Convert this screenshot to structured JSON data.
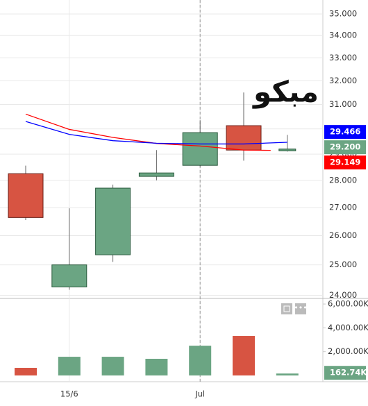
{
  "chart_data": [
    {
      "type": "candlestick",
      "categories": [
        null,
        "15/6",
        null,
        null,
        "Jul",
        null,
        null
      ],
      "open": [
        28.25,
        24.27,
        25.34,
        28.15,
        28.57,
        30.13,
        29.13
      ],
      "high": [
        28.56,
        26.97,
        27.84,
        29.16,
        30.35,
        31.5,
        29.76
      ],
      "low": [
        26.55,
        24.18,
        25.1,
        28.0,
        28.52,
        28.75,
        29.1
      ],
      "close": [
        26.64,
        25.0,
        27.71,
        28.28,
        29.85,
        29.16,
        29.2
      ],
      "close_label": "29.200",
      "up_color": "#6ba583",
      "down_color": "#d75442",
      "lines": [
        {
          "color": "#ff0000",
          "values": [
            30.6,
            29.98,
            29.66,
            29.42,
            29.32,
            29.16,
            29.149
          ]
        },
        {
          "color": "#0000ff",
          "values": [
            30.3,
            29.78,
            29.53,
            29.43,
            29.4,
            29.4,
            29.466
          ]
        }
      ],
      "annotation": "مبكو",
      "log_scale": true,
      "ylim": [
        23.9,
        35.66
      ],
      "yticks": [
        {
          "value": 24,
          "label": "24.000"
        },
        {
          "value": 25,
          "label": "25.000"
        },
        {
          "value": 26,
          "label": "26.000"
        },
        {
          "value": 27,
          "label": "27.000"
        },
        {
          "value": 28,
          "label": "28.000"
        },
        {
          "value": 29,
          "label": "29.000"
        },
        {
          "value": 30,
          "label": "30.000"
        },
        {
          "value": 31,
          "label": "31.000"
        },
        {
          "value": 32,
          "label": "32.000"
        },
        {
          "value": 33,
          "label": "33.000"
        },
        {
          "value": 34,
          "label": "34.000"
        },
        {
          "value": 35,
          "label": "35.000"
        }
      ],
      "grid": true
    },
    {
      "type": "bar",
      "values": [
        640,
        1570,
        1570,
        1400,
        2500,
        3320,
        162.74
      ],
      "value_labels": [
        null,
        null,
        null,
        null,
        null,
        null,
        "162.74K"
      ],
      "ylim": [
        0,
        6470
      ],
      "yticks": [
        {
          "value": 2000,
          "label": "2,000.00K"
        },
        {
          "value": 4000,
          "label": "4,000.00K"
        },
        {
          "value": 6000,
          "label": "6,000.00K"
        }
      ]
    }
  ]
}
